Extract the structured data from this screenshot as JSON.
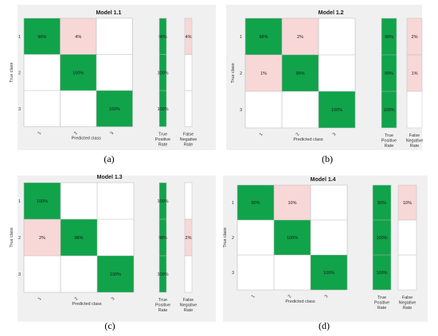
{
  "chart_data": [
    {
      "type": "heatmap",
      "caption": "(a)",
      "title": "Model 1.1",
      "ylabel": "True class",
      "xlabel": "Predicted class",
      "classes": [
        "1",
        "2",
        "3"
      ],
      "x_tick_labels": [
        "1",
        "2",
        "3"
      ],
      "summary_labels": [
        "True Positive Rate",
        "False Negative Rate"
      ],
      "matrix": [
        [
          "96%",
          "4%",
          ""
        ],
        [
          "",
          "100%",
          ""
        ],
        [
          "",
          "",
          "100%"
        ]
      ],
      "matrix_values": [
        [
          96,
          4,
          0
        ],
        [
          0,
          100,
          0
        ],
        [
          0,
          0,
          100
        ]
      ],
      "tpr": [
        "96%",
        "100%",
        "100%"
      ],
      "tpr_values": [
        96,
        100,
        100
      ],
      "fnr": [
        "4%",
        "",
        ""
      ],
      "fnr_values": [
        4,
        0,
        0
      ]
    },
    {
      "type": "heatmap",
      "caption": "(b)",
      "title": "Model 1.2",
      "ylabel": "True class",
      "xlabel": "Predicted class",
      "classes": [
        "1",
        "2",
        "3"
      ],
      "x_tick_labels": [
        "1",
        "2",
        "3"
      ],
      "summary_labels": [
        "True Positive Rate",
        "False Negative Rate"
      ],
      "matrix": [
        [
          "98%",
          "2%",
          ""
        ],
        [
          "1%",
          "99%",
          ""
        ],
        [
          "",
          "",
          "100%"
        ]
      ],
      "matrix_values": [
        [
          98,
          2,
          0
        ],
        [
          1,
          99,
          0
        ],
        [
          0,
          0,
          100
        ]
      ],
      "tpr": [
        "98%",
        "99%",
        "100%"
      ],
      "tpr_values": [
        98,
        99,
        100
      ],
      "fnr": [
        "2%",
        "1%",
        ""
      ],
      "fnr_values": [
        2,
        1,
        0
      ]
    },
    {
      "type": "heatmap",
      "caption": "(c)",
      "title": "Model 1.3",
      "ylabel": "True class",
      "xlabel": "Predicted class",
      "classes": [
        "1",
        "2",
        "3"
      ],
      "x_tick_labels": [
        "1",
        "2",
        "3"
      ],
      "summary_labels": [
        "True Positive Rate",
        "False Negative Rate"
      ],
      "matrix": [
        [
          "100%",
          "",
          ""
        ],
        [
          "2%",
          "98%",
          ""
        ],
        [
          "",
          "",
          "100%"
        ]
      ],
      "matrix_values": [
        [
          100,
          0,
          0
        ],
        [
          2,
          98,
          0
        ],
        [
          0,
          0,
          100
        ]
      ],
      "tpr": [
        "100%",
        "98%",
        "100%"
      ],
      "tpr_values": [
        100,
        98,
        100
      ],
      "fnr": [
        "",
        "2%",
        ""
      ],
      "fnr_values": [
        0,
        2,
        0
      ]
    },
    {
      "type": "heatmap",
      "caption": "(d)",
      "title": "Model 1.4",
      "ylabel": "True class",
      "xlabel": "Predicted class",
      "classes": [
        "1",
        "2",
        "3"
      ],
      "x_tick_labels": [
        "1",
        "2",
        "3"
      ],
      "summary_labels": [
        "True Positive Rate",
        "False Negative Rate"
      ],
      "matrix": [
        [
          "90%",
          "10%",
          ""
        ],
        [
          "",
          "100%",
          ""
        ],
        [
          "",
          "",
          "100%"
        ]
      ],
      "matrix_values": [
        [
          90,
          10,
          0
        ],
        [
          0,
          100,
          0
        ],
        [
          0,
          0,
          100
        ]
      ],
      "tpr": [
        "90%",
        "100%",
        "100%"
      ],
      "tpr_values": [
        90,
        100,
        100
      ],
      "fnr": [
        "10%",
        "",
        ""
      ],
      "fnr_values": [
        10,
        0,
        0
      ]
    }
  ],
  "colors": {
    "correct": "#10a34a",
    "error": "#f8d7d7",
    "empty": "#ffffff",
    "panel_background": "#f0f0f0"
  }
}
